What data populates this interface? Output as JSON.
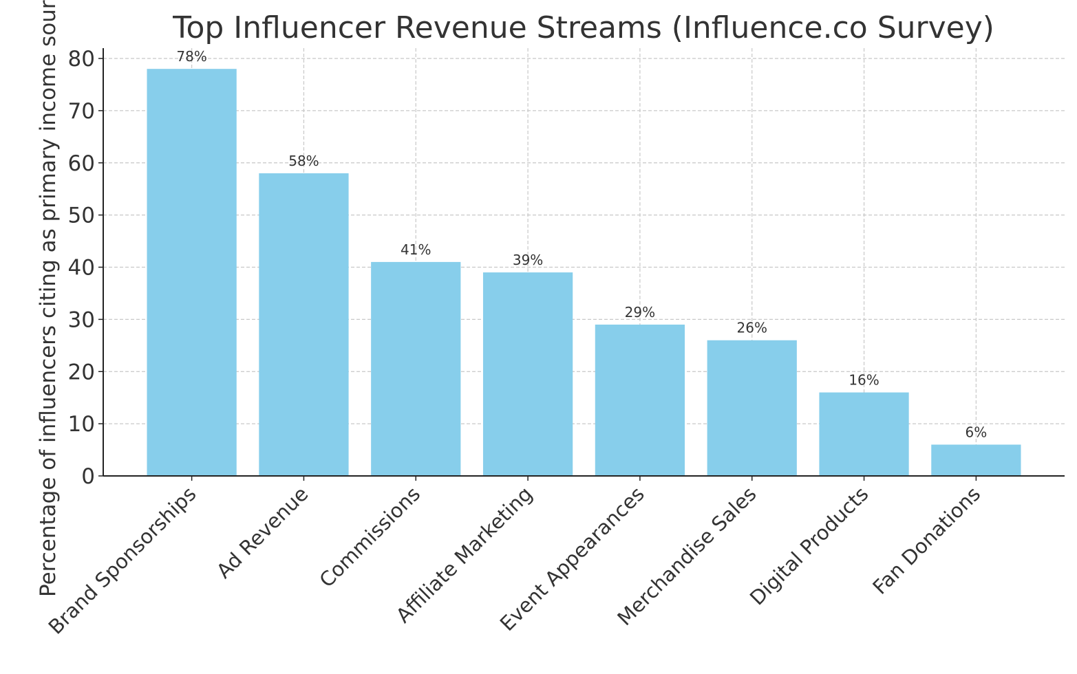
{
  "chart_data": {
    "type": "bar",
    "title": "Top Influencer Revenue Streams (Influence.co Survey)",
    "xlabel": "",
    "ylabel": "Percentage of influencers citing as primary income source",
    "categories": [
      "Brand Sponsorships",
      "Ad Revenue",
      "Commissions",
      "Affiliate Marketing",
      "Event Appearances",
      "Merchandise Sales",
      "Digital Products",
      "Fan Donations"
    ],
    "values": [
      78,
      58,
      41,
      39,
      29,
      26,
      16,
      6
    ],
    "data_labels": [
      "78%",
      "58%",
      "41%",
      "39%",
      "29%",
      "26%",
      "16%",
      "6%"
    ],
    "ylim": [
      0,
      80
    ],
    "yticks": [
      0,
      10,
      20,
      30,
      40,
      50,
      60,
      70,
      80
    ],
    "grid": true,
    "bar_color": "#87CEEB"
  }
}
